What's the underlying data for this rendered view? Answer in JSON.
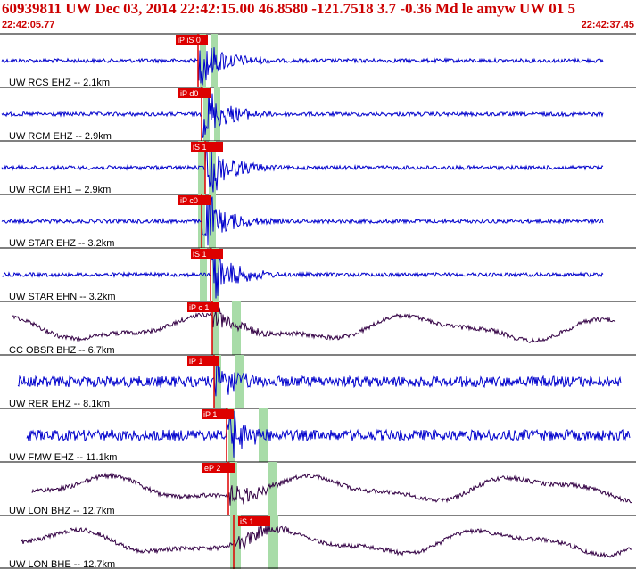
{
  "header": {
    "title": "60939811 UW Dec 03, 2014 22:42:15.00    46.8580 -121.7518  3.7 -0.36 Md le amyw UW 01   5",
    "time_start": "22:42:05.77",
    "time_end": "22:42:37.45"
  },
  "colors": {
    "header_text": "#cc0000",
    "trace_blue": "#0000cc",
    "trace_purple": "#330044",
    "pick": "#dd0000",
    "window": "#a8dca8"
  },
  "channels": [
    {
      "label": "UW RCS EHZ -- 2.1km",
      "pick": "iP iS 0",
      "color": "#0000cc",
      "type": "hf"
    },
    {
      "label": "UW RCM EHZ -- 2.9km",
      "pick": "iP d0",
      "color": "#0000cc",
      "type": "hf"
    },
    {
      "label": "UW RCM EH1 -- 2.9km",
      "pick": "iS 1",
      "color": "#0000cc",
      "type": "hf"
    },
    {
      "label": "UW STAR EHZ -- 3.2km",
      "pick": "iP c0",
      "color": "#0000cc",
      "type": "hf"
    },
    {
      "label": "UW STAR EHN -- 3.2km",
      "pick": "iS 1",
      "color": "#0000cc",
      "type": "hf"
    },
    {
      "label": "CC OBSR BHZ -- 6.7km",
      "pick": "iP c 1",
      "color": "#330044",
      "type": "lf"
    },
    {
      "label": "UW RER EHZ -- 8.1km",
      "pick": "iP 1",
      "color": "#0000cc",
      "type": "hf"
    },
    {
      "label": "UW FMW EHZ -- 11.1km",
      "pick": "iP 1",
      "color": "#0000cc",
      "type": "hf"
    },
    {
      "label": "UW LON BHZ -- 12.7km",
      "pick": "eP 2",
      "color": "#330044",
      "type": "lf"
    },
    {
      "label": "UW LON BHE -- 12.7km",
      "pick": "iS 1",
      "color": "#330044",
      "type": "lf"
    }
  ]
}
